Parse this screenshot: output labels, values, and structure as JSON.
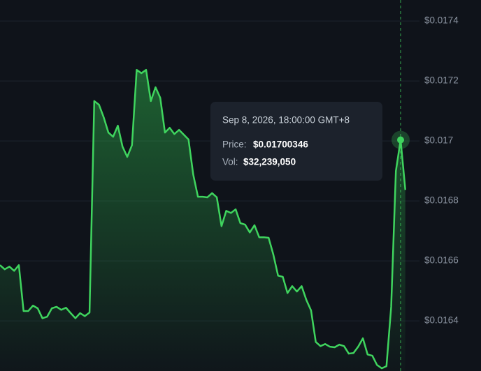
{
  "chart_data": {
    "type": "line",
    "series": [
      {
        "color": "#3fd45e",
        "values": [
          0.016586,
          0.016572,
          0.016581,
          0.016567,
          0.016586,
          0.016433,
          0.016433,
          0.016451,
          0.016442,
          0.016409,
          0.016414,
          0.016442,
          0.016447,
          0.016437,
          0.016444,
          0.016426,
          0.016409,
          0.016426,
          0.016416,
          0.016428,
          0.017133,
          0.017121,
          0.017079,
          0.017028,
          0.017014,
          0.017051,
          0.016981,
          0.016947,
          0.016986,
          0.017237,
          0.017226,
          0.017237,
          0.017133,
          0.017179,
          0.017144,
          0.017028,
          0.017044,
          0.017023,
          0.017037,
          0.017021,
          0.017005,
          0.016888,
          0.016814,
          0.016814,
          0.016812,
          0.016826,
          0.016812,
          0.016716,
          0.016767,
          0.01676,
          0.016772,
          0.016726,
          0.016721,
          0.016695,
          0.016719,
          0.016679,
          0.016679,
          0.016677,
          0.016621,
          0.016551,
          0.016547,
          0.016493,
          0.016516,
          0.016498,
          0.016516,
          0.01647,
          0.016435,
          0.01633,
          0.016316,
          0.016323,
          0.016314,
          0.016312,
          0.016321,
          0.016316,
          0.016291,
          0.016293,
          0.016314,
          0.016342,
          0.016288,
          0.016284,
          0.016253,
          0.016242,
          0.016249,
          0.016447,
          0.0169,
          0.01700346,
          0.016837
        ]
      }
    ],
    "ylim": [
      0.016233,
      0.01747
    ],
    "yticks": [
      {
        "value": 0.0174,
        "label": "$0.0174"
      },
      {
        "value": 0.0172,
        "label": "$0.0172"
      },
      {
        "value": 0.017,
        "label": "$0.017"
      },
      {
        "value": 0.0168,
        "label": "$0.0168"
      },
      {
        "value": 0.0166,
        "label": "$0.0166"
      },
      {
        "value": 0.0164,
        "label": "$0.0164"
      }
    ],
    "grid": true,
    "hover_index": 85,
    "tooltip": {
      "date": "Sep 8, 2026, 18:00:00 GMT+8",
      "price_label": "Price:",
      "price": "$0.01700346",
      "vol_label": "Vol:",
      "vol": "$32,239,050"
    }
  }
}
